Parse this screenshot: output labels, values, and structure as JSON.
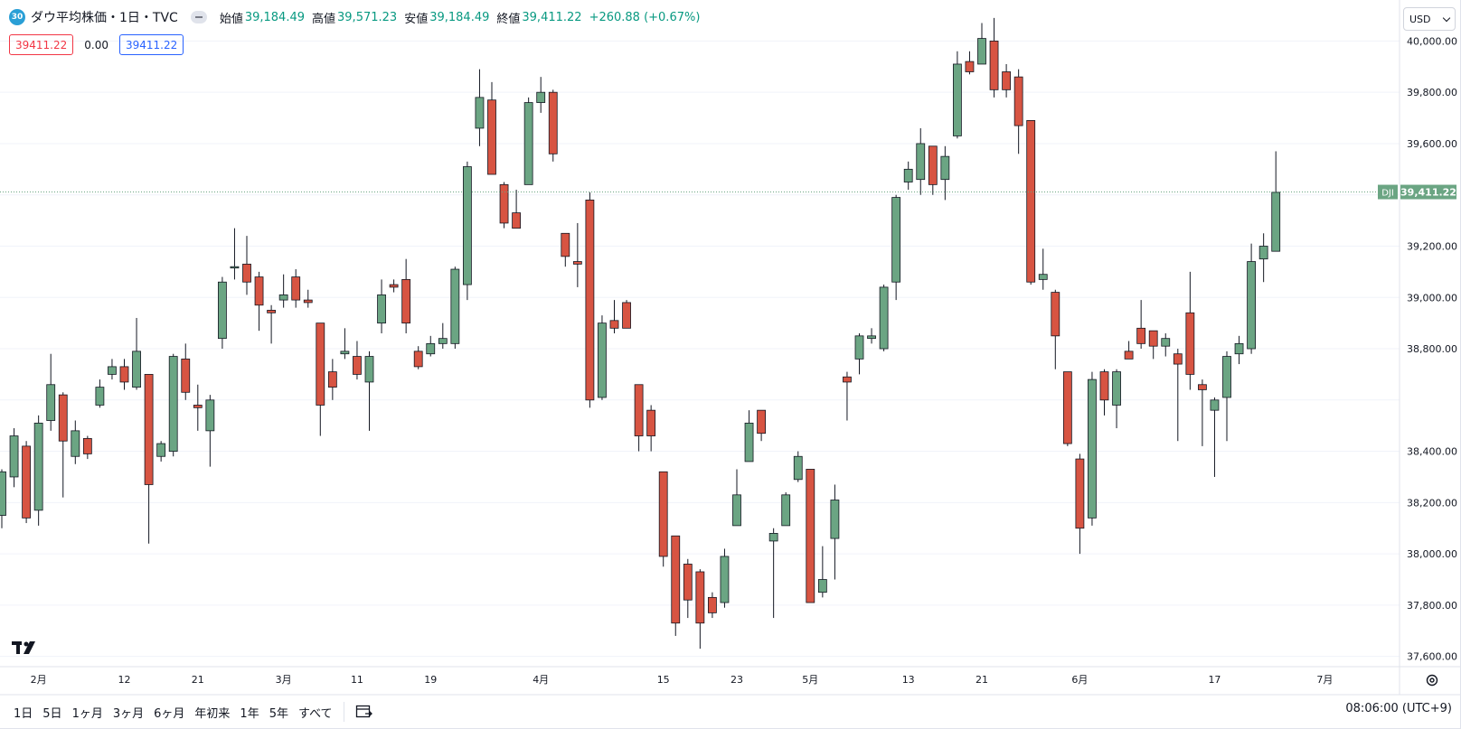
{
  "header": {
    "badge": "30",
    "symbol_title": "ダウ平均株価・1日・TVC",
    "open_label": "始値",
    "open_value": "39,184.49",
    "high_label": "高値",
    "high_value": "39,571.23",
    "low_label": "安値",
    "low_value": "39,184.49",
    "close_label": "終値",
    "close_value": "39,411.22",
    "change": "+260.88 (+0.67%)"
  },
  "inputs": {
    "left_value": "39411.22",
    "middle_value": "0.00",
    "right_value": "39411.22"
  },
  "currency_select": "USD",
  "bottom_bar": {
    "ranges": [
      "1日",
      "5日",
      "1ヶ月",
      "3ヶ月",
      "6ヶ月",
      "年初来",
      "1年",
      "5年",
      "すべて"
    ],
    "clock": "08:06:00 (UTC+9)"
  },
  "colors": {
    "up": "#6ba583",
    "down": "#d75442",
    "price_label": "#6ba583",
    "grid": "#f0f3fa"
  },
  "chart_data": {
    "type": "candlestick",
    "symbol": "DJI",
    "last_price": 39411.22,
    "last_price_label": "39,411.22",
    "ylim": [
      37560,
      40160
    ],
    "y_ticks": [
      37600,
      37800,
      38000,
      38200,
      38400,
      38600,
      38800,
      39000,
      39200,
      39400,
      39600,
      39800,
      40000
    ],
    "y_tick_labels": [
      "37,600.00",
      "37,800.00",
      "38,000.00",
      "38,200.00",
      "38,400.00",
      "",
      "38,800.00",
      "39,000.00",
      "39,200.00",
      "",
      "39,600.00",
      "39,800.00",
      "40,000.00"
    ],
    "x_labels": [
      {
        "label": "2月",
        "index": 3
      },
      {
        "label": "12",
        "index": 10
      },
      {
        "label": "21",
        "index": 16
      },
      {
        "label": "3月",
        "index": 23
      },
      {
        "label": "11",
        "index": 29
      },
      {
        "label": "19",
        "index": 35
      },
      {
        "label": "4月",
        "index": 44
      },
      {
        "label": "15",
        "index": 54
      },
      {
        "label": "23",
        "index": 60
      },
      {
        "label": "5月",
        "index": 66
      },
      {
        "label": "13",
        "index": 74
      },
      {
        "label": "21",
        "index": 80
      },
      {
        "label": "6月",
        "index": 88
      },
      {
        "label": "17",
        "index": 99
      },
      {
        "label": "7月",
        "index": 108
      }
    ],
    "candles": [
      [
        38150,
        38320,
        38100,
        38330
      ],
      [
        38300,
        38460,
        38260,
        38490
      ],
      [
        38420,
        38140,
        38120,
        38440
      ],
      [
        38170,
        38510,
        38110,
        38540
      ],
      [
        38520,
        38660,
        38480,
        38780
      ],
      [
        38620,
        38440,
        38220,
        38630
      ],
      [
        38380,
        38480,
        38350,
        38520
      ],
      [
        38450,
        38390,
        38370,
        38460
      ],
      [
        38580,
        38650,
        38570,
        38680
      ],
      [
        38700,
        38730,
        38680,
        38760
      ],
      [
        38730,
        38670,
        38640,
        38760
      ],
      [
        38650,
        38790,
        38640,
        38920
      ],
      [
        38700,
        38270,
        38040,
        38700
      ],
      [
        38380,
        38430,
        38360,
        38440
      ],
      [
        38400,
        38770,
        38380,
        38780
      ],
      [
        38760,
        38630,
        38600,
        38820
      ],
      [
        38580,
        38570,
        38480,
        38660
      ],
      [
        38480,
        38600,
        38340,
        38620
      ],
      [
        38840,
        39060,
        38800,
        39080
      ],
      [
        39120,
        39120,
        39070,
        39270
      ],
      [
        39130,
        39060,
        39010,
        39240
      ],
      [
        39080,
        38970,
        38870,
        39100
      ],
      [
        38950,
        38940,
        38820,
        38970
      ],
      [
        38990,
        39010,
        38960,
        39090
      ],
      [
        39080,
        38990,
        38960,
        39110
      ],
      [
        38990,
        38980,
        38960,
        39030
      ],
      [
        38900,
        38580,
        38460,
        38900
      ],
      [
        38710,
        38650,
        38600,
        38760
      ],
      [
        38780,
        38790,
        38760,
        38880
      ],
      [
        38770,
        38700,
        38680,
        38830
      ],
      [
        38670,
        38770,
        38480,
        38790
      ],
      [
        38900,
        39010,
        38860,
        39070
      ],
      [
        39050,
        39040,
        39020,
        39070
      ],
      [
        39070,
        38900,
        38860,
        39150
      ],
      [
        38790,
        38730,
        38720,
        38810
      ],
      [
        38780,
        38820,
        38770,
        38850
      ],
      [
        38820,
        38840,
        38800,
        38900
      ],
      [
        38820,
        39110,
        38800,
        39120
      ],
      [
        39050,
        39510,
        38990,
        39530
      ],
      [
        39660,
        39780,
        39590,
        39890
      ],
      [
        39770,
        39480,
        39480,
        39840
      ],
      [
        39440,
        39290,
        39270,
        39450
      ],
      [
        39330,
        39270,
        39270,
        39420
      ],
      [
        39440,
        39760,
        39440,
        39780
      ],
      [
        39760,
        39800,
        39720,
        39860
      ],
      [
        39800,
        39560,
        39530,
        39810
      ],
      [
        39250,
        39160,
        39120,
        39250
      ],
      [
        39140,
        39130,
        39040,
        39290
      ],
      [
        39380,
        38600,
        38570,
        39410
      ],
      [
        38610,
        38900,
        38600,
        38930
      ],
      [
        38910,
        38880,
        38860,
        38990
      ],
      [
        38980,
        38880,
        38880,
        38990
      ],
      [
        38660,
        38460,
        38400,
        38660
      ],
      [
        38560,
        38460,
        38400,
        38580
      ],
      [
        38320,
        37990,
        37950,
        38320
      ],
      [
        38070,
        37730,
        37680,
        38070
      ],
      [
        37960,
        37820,
        37750,
        37980
      ],
      [
        37930,
        37730,
        37630,
        37940
      ],
      [
        37830,
        37770,
        37750,
        37850
      ],
      [
        37810,
        37990,
        37790,
        38020
      ],
      [
        38110,
        38230,
        38110,
        38330
      ],
      [
        38360,
        38510,
        38360,
        38560
      ],
      [
        38560,
        38470,
        38440,
        38560
      ],
      [
        38050,
        38080,
        37750,
        38100
      ],
      [
        38110,
        38230,
        38110,
        38240
      ],
      [
        38290,
        38380,
        38280,
        38400
      ],
      [
        38330,
        37810,
        37810,
        38330
      ],
      [
        37850,
        37900,
        37830,
        38030
      ],
      [
        38060,
        38210,
        37900,
        38270
      ],
      [
        38690,
        38670,
        38520,
        38710
      ],
      [
        38760,
        38850,
        38700,
        38860
      ],
      [
        38840,
        38850,
        38820,
        38880
      ],
      [
        38800,
        39040,
        38790,
        39050
      ],
      [
        39060,
        39390,
        38990,
        39400
      ],
      [
        39450,
        39500,
        39420,
        39530
      ],
      [
        39460,
        39600,
        39400,
        39660
      ],
      [
        39590,
        39440,
        39400,
        39590
      ],
      [
        39460,
        39550,
        39380,
        39590
      ],
      [
        39630,
        39910,
        39620,
        39960
      ],
      [
        39920,
        39880,
        39870,
        39960
      ],
      [
        39910,
        40010,
        39910,
        40070
      ],
      [
        40000,
        39810,
        39780,
        40090
      ],
      [
        39880,
        39810,
        39780,
        39910
      ],
      [
        39860,
        39670,
        39560,
        39890
      ],
      [
        39690,
        39060,
        39050,
        39690
      ],
      [
        39070,
        39090,
        39030,
        39190
      ],
      [
        39020,
        38850,
        38720,
        39030
      ],
      [
        38710,
        38430,
        38420,
        38710
      ],
      [
        38370,
        38100,
        38000,
        38390
      ],
      [
        38140,
        38680,
        38110,
        38710
      ],
      [
        38710,
        38600,
        38540,
        38720
      ],
      [
        38580,
        38710,
        38490,
        38720
      ],
      [
        38790,
        38760,
        38770,
        38830
      ],
      [
        38880,
        38820,
        38800,
        38990
      ],
      [
        38870,
        38810,
        38760,
        38870
      ],
      [
        38810,
        38840,
        38770,
        38860
      ],
      [
        38780,
        38740,
        38440,
        38800
      ],
      [
        38940,
        38700,
        38640,
        39100
      ],
      [
        38660,
        38640,
        38420,
        38680
      ],
      [
        38560,
        38600,
        38300,
        38610
      ],
      [
        38610,
        38770,
        38440,
        38790
      ],
      [
        38780,
        38820,
        38740,
        38850
      ],
      [
        38800,
        39140,
        38780,
        39210
      ],
      [
        39150,
        39200,
        39060,
        39250
      ],
      [
        39180,
        39410,
        39180,
        39570
      ]
    ]
  }
}
